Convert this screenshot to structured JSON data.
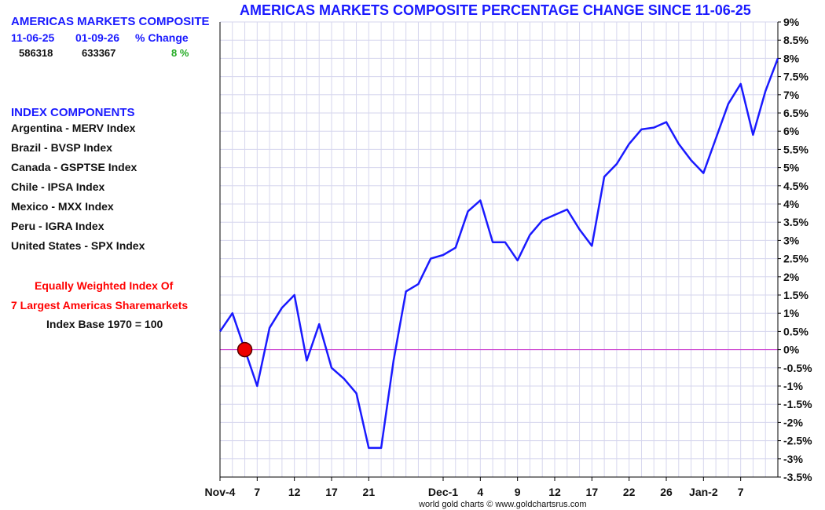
{
  "header": {
    "title": "AMERICAS MARKETS COMPOSITE",
    "col_start_label": "11-06-25",
    "col_end_label": "01-09-26",
    "col_change_label": "% Change",
    "start_value": "586318",
    "end_value": "633367",
    "change_value": "8 %"
  },
  "components": {
    "heading": "INDEX COMPONENTS",
    "items": [
      "Argentina - MERV Index",
      "Brazil - BVSP Index",
      "Canada - GSPTSE Index",
      "Chile - IPSA Index",
      "Mexico - MXX Index",
      "Peru - IGRA Index",
      "United States - SPX Index"
    ]
  },
  "notes": {
    "line1": "Equally Weighted Index Of",
    "line2": "7 Largest Americas Sharemarkets",
    "line3": "Index Base 1970 = 100"
  },
  "credit": "world gold charts © www.goldchartsrus.com",
  "colors": {
    "line": "#1a1aff",
    "zero_line": "#cc33cc",
    "marker": "#ee0000",
    "grid": "#d6d6ee",
    "text_blue": "#1a1aff",
    "text_red": "#ff0000",
    "text_green": "#22aa22"
  },
  "chart_data": {
    "type": "line",
    "title": "AMERICAS MARKETS COMPOSITE PERCENTAGE CHANGE SINCE 11-06-25",
    "xlabel": "",
    "ylabel": "",
    "ylim": [
      -3.5,
      9
    ],
    "y_tick_step": 0.5,
    "y_tick_suffix": "%",
    "grid": true,
    "x_tick_labels": [
      {
        "index": 0,
        "label": "Nov-4"
      },
      {
        "index": 3,
        "label": "7"
      },
      {
        "index": 6,
        "label": "12"
      },
      {
        "index": 9,
        "label": "17"
      },
      {
        "index": 12,
        "label": "21"
      },
      {
        "index": 18,
        "label": "Dec-1"
      },
      {
        "index": 21,
        "label": "4"
      },
      {
        "index": 24,
        "label": "9"
      },
      {
        "index": 27,
        "label": "12"
      },
      {
        "index": 30,
        "label": "17"
      },
      {
        "index": 33,
        "label": "22"
      },
      {
        "index": 36,
        "label": "26"
      },
      {
        "index": 39,
        "label": "Jan-2"
      },
      {
        "index": 42,
        "label": "7"
      }
    ],
    "reference_line": 0,
    "marker": {
      "index": 2,
      "value": 0
    },
    "series": [
      {
        "values": [
          0.5,
          1.0,
          0.0,
          -1.0,
          0.6,
          1.15,
          1.5,
          -0.3,
          0.7,
          -0.5,
          -0.8,
          -1.2,
          -2.7,
          -2.7,
          -0.3,
          1.6,
          1.8,
          2.5,
          2.6,
          2.8,
          3.8,
          4.1,
          2.95,
          2.95,
          2.45,
          3.15,
          3.55,
          3.7,
          3.85,
          3.3,
          2.85,
          4.75,
          5.1,
          5.65,
          6.05,
          6.1,
          6.25,
          5.65,
          5.2,
          4.85,
          5.8,
          6.75,
          7.3,
          5.9,
          7.1,
          8.0
        ]
      }
    ]
  }
}
